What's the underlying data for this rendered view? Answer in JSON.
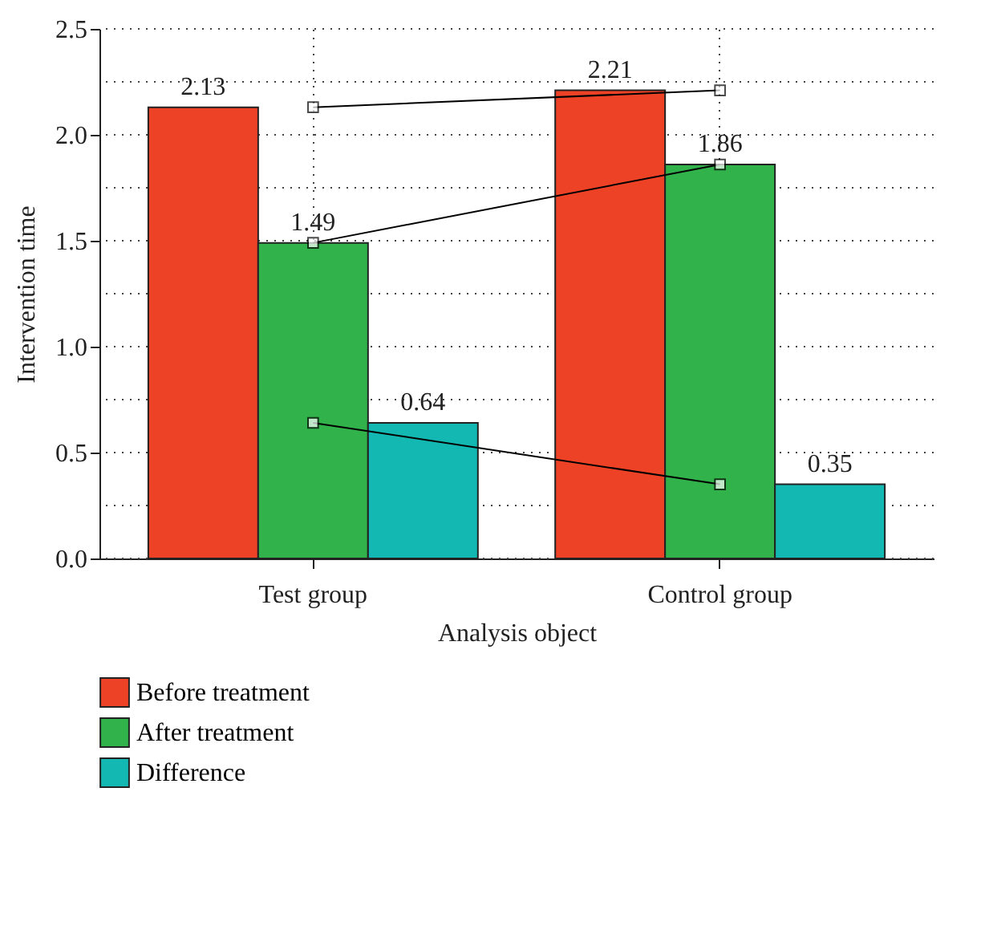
{
  "chart_data": {
    "type": "bar",
    "xlabel": "Analysis object",
    "ylabel": "Intervention time",
    "categories": [
      "Test group",
      "Control group"
    ],
    "series": [
      {
        "name": "Before treatment",
        "color": "#ee4227",
        "values": [
          2.13,
          2.21
        ],
        "value_labels": [
          "2.13",
          "2.21"
        ]
      },
      {
        "name": "After treatment",
        "color": "#31b24a",
        "values": [
          1.49,
          1.86
        ],
        "value_labels": [
          "1.49",
          "1.86"
        ]
      },
      {
        "name": "Difference",
        "color": "#14b8b2",
        "values": [
          0.64,
          0.35
        ],
        "value_labels": [
          "0.64",
          "0.35"
        ]
      },
      {
        "type": "line",
        "color": "#000000",
        "marker": "square",
        "values": [
          2.13,
          2.21
        ]
      },
      {
        "type": "line",
        "color": "#000000",
        "marker": "square",
        "values": [
          1.49,
          1.86
        ]
      },
      {
        "type": "line",
        "color": "#000000",
        "marker": "square",
        "values": [
          0.64,
          0.35
        ]
      }
    ],
    "ylim": [
      0,
      2.5
    ],
    "yticks": [
      {
        "value": 0,
        "label": "0.0"
      },
      {
        "value": 0.25,
        "label": null
      },
      0.5,
      {
        "value": 0.75,
        "label": null
      },
      {
        "value": 1,
        "label": "1.0"
      },
      {
        "value": 1.25,
        "label": null
      },
      1.5,
      {
        "value": 1.75,
        "label": null
      },
      {
        "value": 2,
        "label": "2.0"
      },
      {
        "value": 2.25,
        "label": null
      },
      2.5
    ],
    "grid": true,
    "legend": "bottom left"
  }
}
